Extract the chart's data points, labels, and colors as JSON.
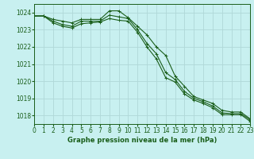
{
  "title": "Graphe pression niveau de la mer (hPa)",
  "background_color": "#c8f0f0",
  "grid_color": "#b0d8d8",
  "line_color": "#1a5e1a",
  "x_min": 0,
  "x_max": 23,
  "y_min": 1017.5,
  "y_max": 1024.5,
  "yticks": [
    1018,
    1019,
    1020,
    1021,
    1022,
    1023,
    1024
  ],
  "xticks": [
    0,
    1,
    2,
    3,
    4,
    5,
    6,
    7,
    8,
    9,
    10,
    11,
    12,
    13,
    14,
    15,
    16,
    17,
    18,
    19,
    20,
    21,
    22,
    23
  ],
  "series1": [
    1023.8,
    1023.8,
    1023.6,
    1023.5,
    1023.4,
    1023.6,
    1023.6,
    1023.6,
    1024.1,
    1024.1,
    1023.7,
    1023.2,
    1022.7,
    1022.0,
    1021.5,
    1020.3,
    1019.7,
    1019.1,
    1018.9,
    1018.7,
    1018.3,
    1018.2,
    1018.2,
    1017.8
  ],
  "series2": [
    1023.8,
    1023.8,
    1023.5,
    1023.3,
    1023.2,
    1023.5,
    1023.5,
    1023.5,
    1023.85,
    1023.75,
    1023.65,
    1023.0,
    1022.2,
    1021.6,
    1020.5,
    1020.1,
    1019.4,
    1019.0,
    1018.8,
    1018.55,
    1018.15,
    1018.1,
    1018.1,
    1017.75
  ],
  "series3": [
    1023.8,
    1023.8,
    1023.4,
    1023.2,
    1023.1,
    1023.35,
    1023.4,
    1023.45,
    1023.65,
    1023.55,
    1023.5,
    1022.85,
    1022.0,
    1021.3,
    1020.2,
    1019.95,
    1019.25,
    1018.9,
    1018.7,
    1018.45,
    1018.05,
    1018.05,
    1018.05,
    1017.65
  ],
  "xlabel_fontsize": 5.5,
  "ylabel_fontsize": 5.5,
  "title_fontsize": 6.0
}
